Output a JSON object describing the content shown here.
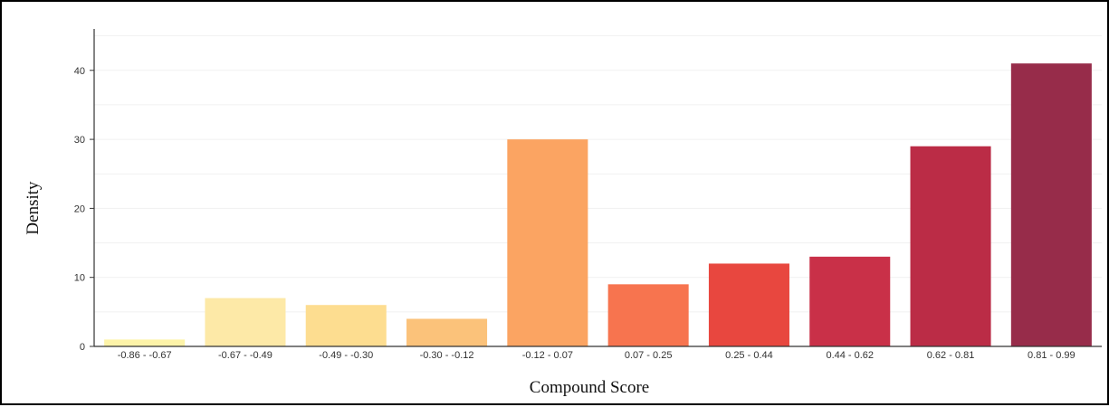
{
  "chart_data": {
    "type": "bar",
    "xlabel": "Compound Score",
    "ylabel": "Density",
    "categories": [
      "-0.86 - -0.67",
      "-0.67 - -0.49",
      "-0.49 - -0.30",
      "-0.30 - -0.12",
      "-0.12 - 0.07",
      "0.07 - 0.25",
      "0.25 - 0.44",
      "0.44 - 0.62",
      "0.62 - 0.81",
      "0.81 - 0.99"
    ],
    "values": [
      1,
      7,
      6,
      4,
      30,
      9,
      12,
      13,
      29,
      41
    ],
    "colors": [
      "#fdf3a8",
      "#fde9a7",
      "#fddd90",
      "#fbc27a",
      "#fba462",
      "#f7744f",
      "#e8473f",
      "#c93048",
      "#bb2c46",
      "#972c4a"
    ],
    "ylim": [
      0,
      46
    ],
    "yticks": [
      0,
      10,
      20,
      30,
      40
    ],
    "grid": true,
    "legend": "none"
  }
}
